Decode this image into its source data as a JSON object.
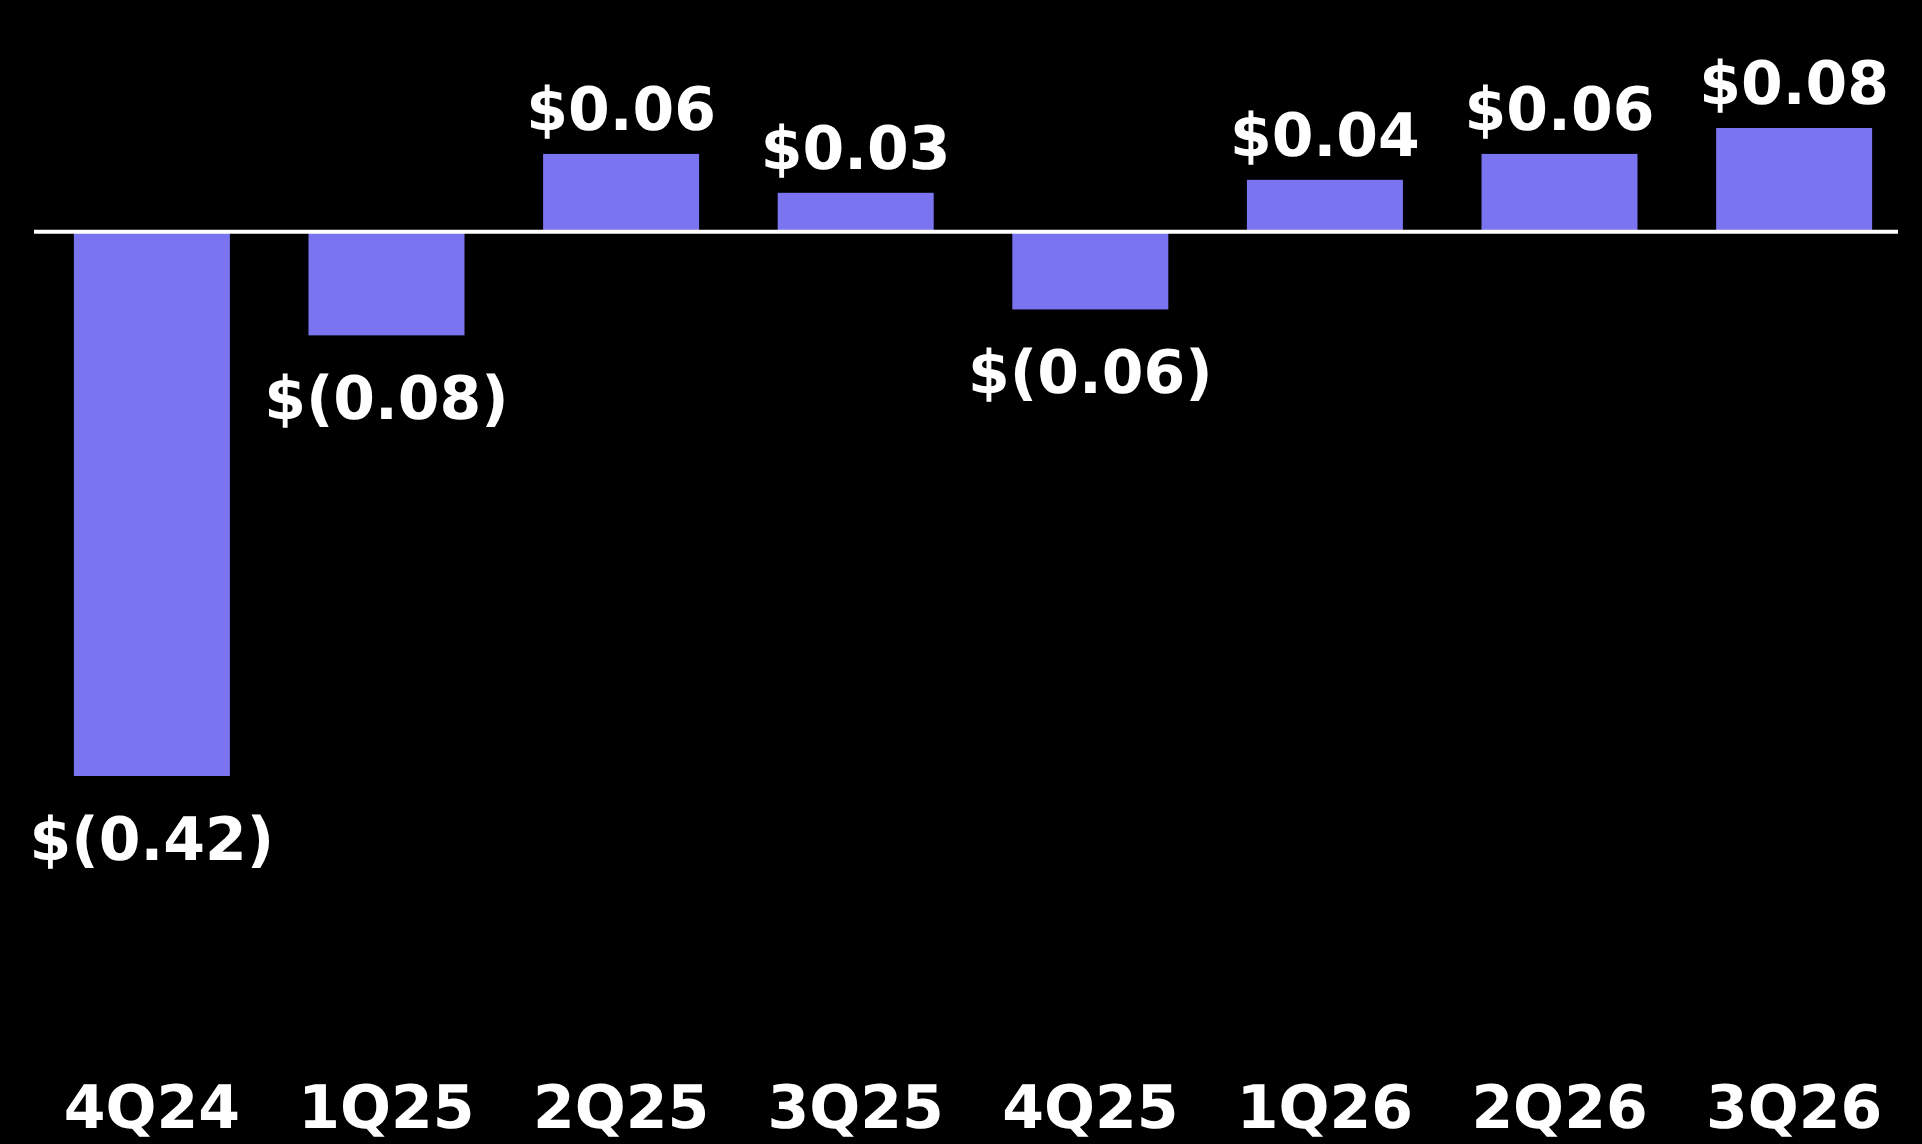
{
  "chart_data": {
    "type": "bar",
    "categories": [
      "4Q24",
      "1Q25",
      "2Q25",
      "3Q25",
      "4Q25",
      "1Q26",
      "2Q26",
      "3Q26"
    ],
    "values": [
      -0.42,
      -0.08,
      0.06,
      0.03,
      -0.06,
      0.04,
      0.06,
      0.08
    ],
    "value_labels": [
      "$(0.42)",
      "$(0.08)",
      "$0.06",
      "$0.03",
      "$(0.06)",
      "$0.04",
      "$0.06",
      "$0.08"
    ],
    "color": "#7b74f0"
  }
}
